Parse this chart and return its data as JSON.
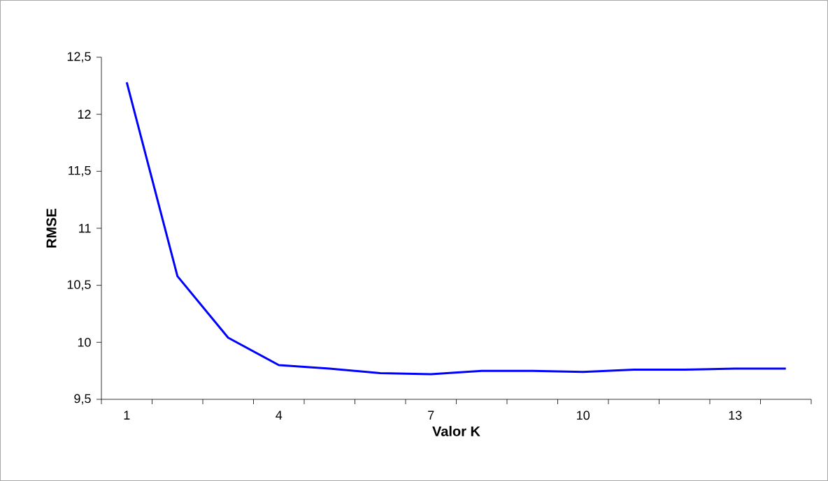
{
  "chart_data": {
    "type": "line",
    "xlabel": "Valor K",
    "ylabel": "RMSE",
    "categories": [
      "1",
      null,
      null,
      "4",
      null,
      null,
      "7",
      null,
      null,
      "10",
      null,
      null,
      "13",
      null
    ],
    "series": [
      {
        "color": "#0000ff",
        "values": [
          12.28,
          10.58,
          10.04,
          9.8,
          9.77,
          9.73,
          9.72,
          9.75,
          9.75,
          9.74,
          9.76,
          9.76,
          9.77,
          9.77
        ]
      }
    ],
    "ylim": [
      9.5,
      12.5
    ],
    "yticks": [
      {
        "value": 9.5,
        "label": "9,5"
      },
      10,
      {
        "value": 10.5,
        "label": "10,5"
      },
      11,
      {
        "value": 11.5,
        "label": "11,5"
      },
      12,
      {
        "value": 12.5,
        "label": "12,5"
      }
    ],
    "grid": false,
    "marker": "none",
    "line_style": "solid"
  }
}
